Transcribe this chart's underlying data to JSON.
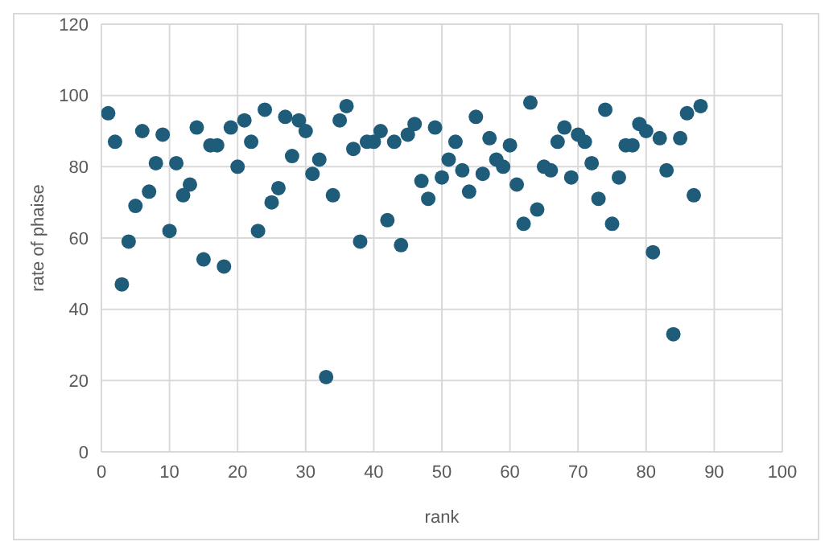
{
  "chart_data": {
    "type": "scatter",
    "xlabel": "rank",
    "ylabel": "rate of phaise",
    "x": [
      1,
      2,
      3,
      4,
      5,
      6,
      7,
      8,
      9,
      10,
      11,
      12,
      13,
      14,
      15,
      16,
      17,
      18,
      19,
      20,
      21,
      22,
      23,
      24,
      25,
      26,
      27,
      28,
      29,
      30,
      31,
      32,
      33,
      34,
      35,
      36,
      37,
      38,
      39,
      40,
      41,
      42,
      43,
      44,
      45,
      46,
      47,
      48,
      49,
      50,
      51,
      52,
      53,
      54,
      55,
      56,
      57,
      58,
      59,
      60,
      61,
      62,
      63,
      64,
      65,
      66,
      67,
      68,
      69,
      70,
      71,
      72,
      73,
      74,
      75,
      76,
      77,
      78,
      79,
      80,
      81,
      82,
      83,
      84,
      85,
      86,
      87,
      88
    ],
    "values": [
      95,
      87,
      47,
      59,
      69,
      90,
      73,
      81,
      89,
      62,
      81,
      72,
      75,
      91,
      54,
      86,
      86,
      52,
      91,
      80,
      93,
      87,
      62,
      96,
      70,
      74,
      94,
      83,
      93,
      90,
      78,
      82,
      21,
      72,
      93,
      97,
      85,
      59,
      87,
      87,
      90,
      65,
      87,
      58,
      89,
      92,
      76,
      71,
      91,
      77,
      82,
      87,
      79,
      73,
      94,
      78,
      88,
      82,
      80,
      86,
      75,
      64,
      98,
      68,
      80,
      79,
      87,
      91,
      77,
      89,
      87,
      81,
      71,
      96,
      64,
      77,
      86,
      86,
      92,
      90,
      56,
      88,
      79,
      33,
      88,
      95,
      72,
      97
    ],
    "color": "#1f5c7a",
    "marker": "circle",
    "grid": true,
    "xlim": [
      0,
      100
    ],
    "xticks": [
      0,
      10,
      20,
      30,
      40,
      50,
      60,
      70,
      80,
      90,
      100
    ],
    "ylim": [
      0,
      120
    ],
    "yticks": [
      0,
      20,
      40,
      60,
      80,
      100,
      120
    ]
  }
}
